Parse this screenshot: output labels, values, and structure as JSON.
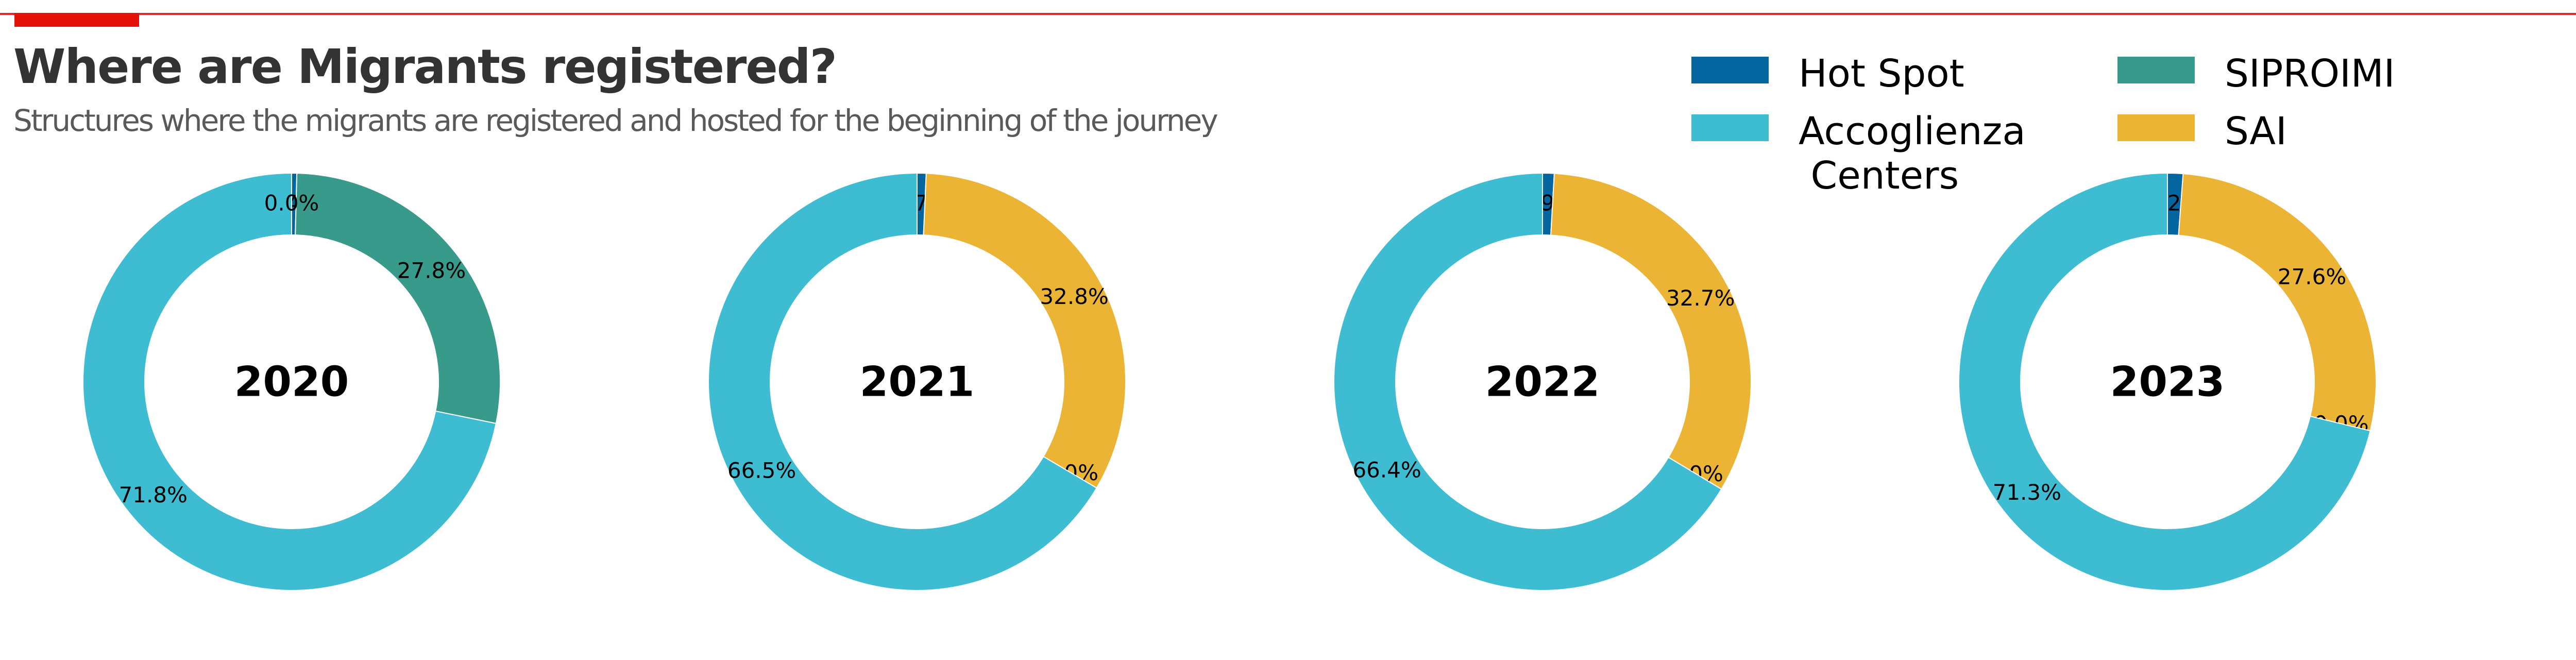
{
  "header": {
    "title": "Where are Migrants registered?",
    "subtitle": "Structures where the migrants are registered and hosted for the beginning of the journey"
  },
  "legend": [
    {
      "key": "hotspot",
      "label": "Hot Spot",
      "color": "#05669f"
    },
    {
      "key": "siproimi",
      "label": "SIPROIMI",
      "color": "#379a8b"
    },
    {
      "key": "accoglienza",
      "label": "Accoglienza\n Centers",
      "color": "#3ebcd2"
    },
    {
      "key": "sai",
      "label": "SAI",
      "color": "#ebb434"
    }
  ],
  "colors": {
    "hotspot": "#05669f",
    "accoglienza": "#3ebcd2",
    "siproimi": "#379a8b",
    "sai": "#ebb434",
    "title": "#333333",
    "subtitle": "#595959",
    "accent": "#e3120b"
  },
  "chart_data": [
    {
      "type": "pie",
      "title": "2020",
      "slices": [
        {
          "category": "Hot Spot",
          "value": 0.4,
          "label": "0.4%"
        },
        {
          "category": "SIPROIMI",
          "value": 27.8,
          "label": "27.8%"
        },
        {
          "category": "Accoglienza Centers",
          "value": 71.8,
          "label": "71.8%"
        },
        {
          "category": "SAI",
          "value": 0.0,
          "label": "0.0%"
        }
      ]
    },
    {
      "type": "pie",
      "title": "2021",
      "slices": [
        {
          "category": "Hot Spot",
          "value": 0.7,
          "label": "0.7%"
        },
        {
          "category": "SAI",
          "value": 32.8,
          "label": "32.8%"
        },
        {
          "category": "SIPROIMI",
          "value": 0.0,
          "label": "0.0%"
        },
        {
          "category": "Accoglienza Centers",
          "value": 66.5,
          "label": "66.5%"
        }
      ]
    },
    {
      "type": "pie",
      "title": "2022",
      "slices": [
        {
          "category": "Hot Spot",
          "value": 0.9,
          "label": "0.9%"
        },
        {
          "category": "SAI",
          "value": 32.7,
          "label": "32.7%"
        },
        {
          "category": "SIPROIMI",
          "value": 0.0,
          "label": "0.0%"
        },
        {
          "category": "Accoglienza Centers",
          "value": 66.4,
          "label": "66.4%"
        }
      ]
    },
    {
      "type": "pie",
      "title": "2023",
      "slices": [
        {
          "category": "Hot Spot",
          "value": 1.2,
          "label": "1.2%"
        },
        {
          "category": "SAI",
          "value": 27.6,
          "label": "27.6%"
        },
        {
          "category": "SIPROIMI",
          "value": 0.0,
          "label": "0.0%"
        },
        {
          "category": "Accoglienza Centers",
          "value": 71.3,
          "label": "71.3%"
        }
      ]
    }
  ]
}
